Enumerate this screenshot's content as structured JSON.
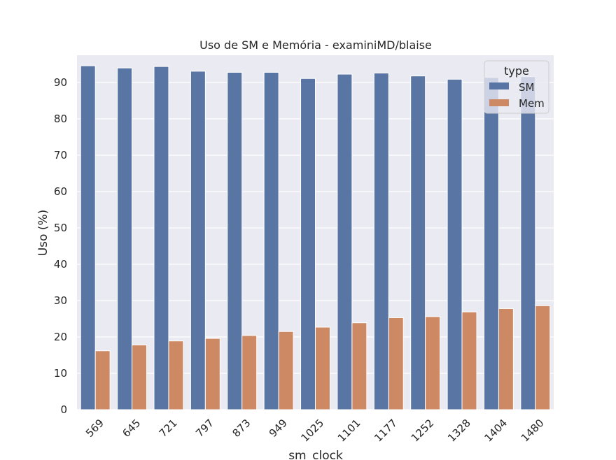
{
  "chart_data": {
    "type": "bar",
    "title": "Uso de SM e Memória - examiniMD/blaise",
    "xlabel": "sm_clock",
    "ylabel": "Uso (%)",
    "categories": [
      "569",
      "645",
      "721",
      "797",
      "873",
      "949",
      "1025",
      "1101",
      "1177",
      "1252",
      "1328",
      "1404",
      "1480"
    ],
    "series": [
      {
        "name": "SM",
        "color": "#5875a4",
        "values": [
          94.6,
          94.0,
          94.4,
          93.1,
          92.8,
          92.8,
          91.1,
          92.3,
          92.6,
          91.8,
          90.9,
          91.4,
          91.6
        ]
      },
      {
        "name": "Mem",
        "color": "#cc8963",
        "values": [
          16.2,
          17.8,
          18.9,
          19.6,
          20.4,
          21.5,
          22.7,
          23.9,
          25.3,
          25.6,
          26.9,
          27.8,
          28.6
        ]
      }
    ],
    "ylim": [
      0,
      97.5
    ],
    "yticks": [
      "0",
      "10",
      "20",
      "30",
      "40",
      "50",
      "60",
      "70",
      "80",
      "90"
    ],
    "grid": true,
    "legend": {
      "title": "type",
      "placement": "top-right"
    },
    "background": "#eaeaf2"
  }
}
